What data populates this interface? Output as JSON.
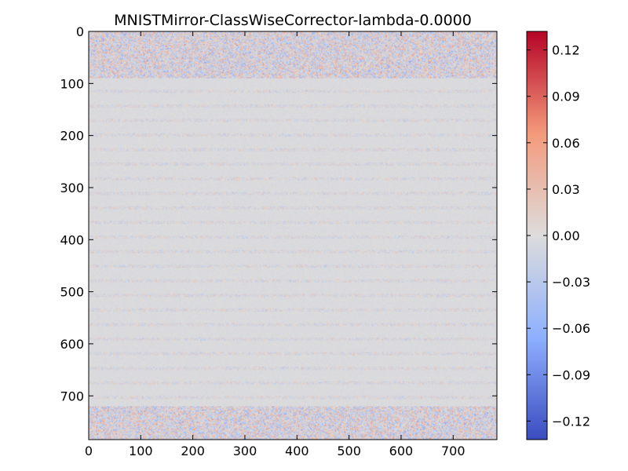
{
  "chart_data": {
    "type": "heatmap",
    "title": "MNISTMirror-ClassWiseCorrector-lambda-0.0000",
    "xlabel": "",
    "ylabel": "",
    "matrix_shape": [
      784,
      784
    ],
    "xlim": [
      0,
      784
    ],
    "ylim": [
      784,
      0
    ],
    "x_ticks": [
      0,
      100,
      200,
      300,
      400,
      500,
      600,
      700
    ],
    "y_ticks": [
      0,
      100,
      200,
      300,
      400,
      500,
      600,
      700
    ],
    "colormap": "coolwarm",
    "color_range": [
      -0.132,
      0.132
    ],
    "colorbar_ticks": [
      0.12,
      0.09,
      0.06,
      0.03,
      0.0,
      -0.03,
      -0.06,
      -0.09,
      -0.12
    ],
    "colorbar_tick_labels": [
      "0.12",
      "0.09",
      "0.06",
      "0.03",
      "0.00",
      "−0.03",
      "−0.06",
      "−0.09",
      "−0.12"
    ],
    "colorbar_stops": [
      {
        "value": -0.132,
        "color": "#3b4cc0"
      },
      {
        "value": -0.066,
        "color": "#8db0fe"
      },
      {
        "value": 0.0,
        "color": "#dddcdc"
      },
      {
        "value": 0.066,
        "color": "#f49a7b"
      },
      {
        "value": 0.132,
        "color": "#b40426"
      }
    ],
    "grid": false,
    "pattern": {
      "background_value": -0.002,
      "row_band_period": 28,
      "row_band_width": 6,
      "row_band_amplitude": 0.03,
      "noisy_top_rows": [
        0,
        90
      ],
      "noisy_bottom_rows": [
        720,
        784
      ],
      "edge_noise_amplitude": 0.07,
      "peak_min": -0.1,
      "peak_max": 0.12
    }
  }
}
